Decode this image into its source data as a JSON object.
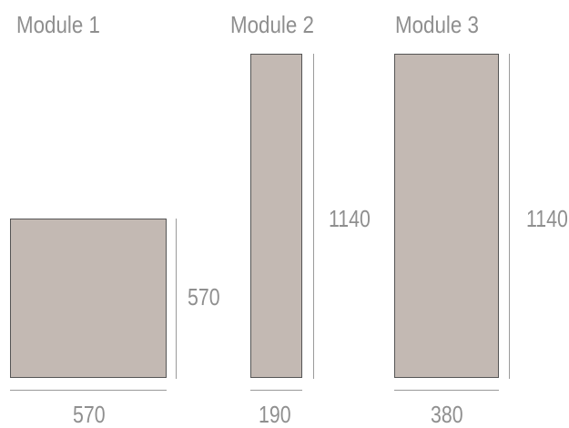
{
  "modules": [
    {
      "id": "module-1",
      "title": "Module 1",
      "width_label": "570",
      "height_label": "570"
    },
    {
      "id": "module-2",
      "title": "Module 2",
      "width_label": "190",
      "height_label": "1140"
    },
    {
      "id": "module-3",
      "title": "Module 3",
      "width_label": "380",
      "height_label": "1140"
    }
  ],
  "colors": {
    "panel_fill": "#c3b9b3",
    "panel_border": "#555555",
    "text": "#8f8f8f",
    "dimension_line": "#9a9a9a"
  }
}
